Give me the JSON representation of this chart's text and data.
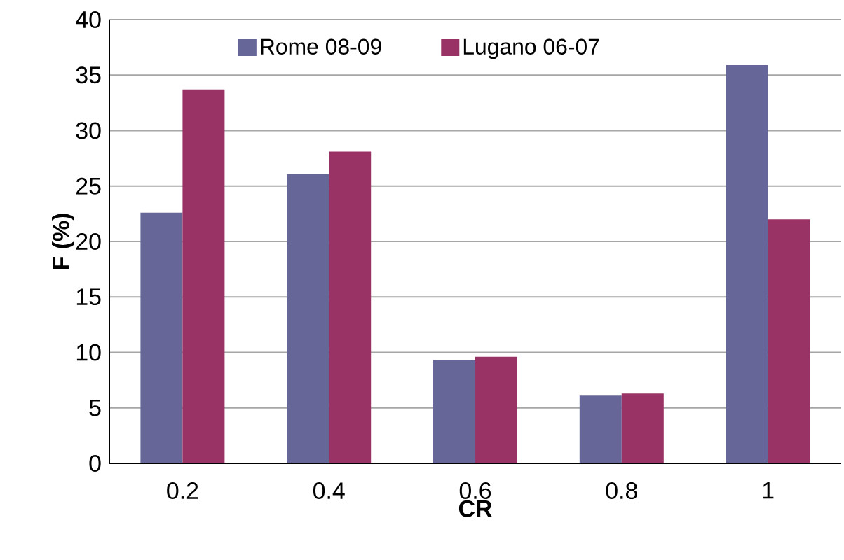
{
  "chart_data": {
    "type": "bar",
    "xlabel": "CR",
    "ylabel": "F (%)",
    "categories": [
      "0.2",
      "0.4",
      "0.6",
      "0.8",
      "1"
    ],
    "series": [
      {
        "name": "Rome 08-09",
        "color": "#666699",
        "values": [
          22.6,
          26.1,
          9.3,
          6.1,
          35.9
        ]
      },
      {
        "name": "Lugano 06-07",
        "color": "#993366",
        "values": [
          33.7,
          28.1,
          9.6,
          6.3,
          22.0
        ]
      }
    ],
    "ylim": [
      0,
      40
    ],
    "yticks": [
      0,
      5,
      10,
      15,
      20,
      25,
      30,
      35,
      40
    ],
    "grid": "y",
    "legend": "top"
  }
}
